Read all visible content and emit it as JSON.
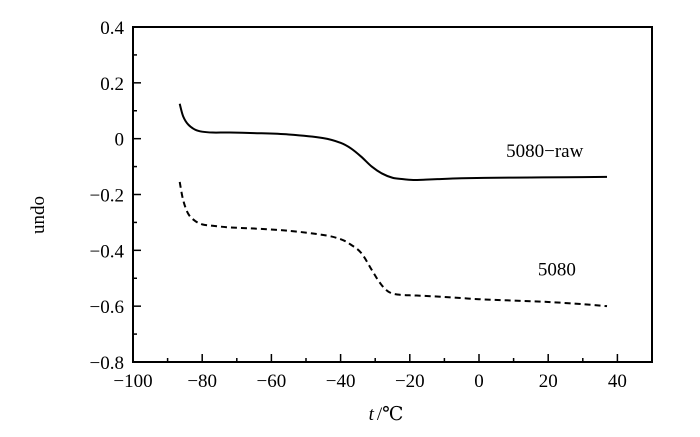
{
  "chart_data": {
    "type": "line",
    "title": "",
    "xlabel_var": "t",
    "xlabel_unit": "/℃",
    "ylabel": "undo",
    "xlim": [
      -100,
      50
    ],
    "ylim": [
      -0.8,
      0.4
    ],
    "x_ticks": [
      -100,
      -80,
      -60,
      -40,
      -20,
      0,
      20,
      40
    ],
    "x_tick_labels": [
      "−100",
      "−80",
      "−60",
      "−40",
      "−20",
      "0",
      "20",
      "40"
    ],
    "y_ticks": [
      0.4,
      0.2,
      0,
      -0.2,
      -0.4,
      -0.6,
      -0.8
    ],
    "y_tick_labels": [
      "0.4",
      "0.2",
      "0",
      "−0.2",
      "−0.4",
      "−0.6",
      "−0.8"
    ],
    "grid": false,
    "series": [
      {
        "name": "5080−raw",
        "style": "solid",
        "x": [
          -86.5,
          -85.5,
          -84,
          -82,
          -80,
          -77,
          -72,
          -65,
          -55,
          -45,
          -40,
          -37,
          -34,
          -31,
          -28,
          -25,
          -22,
          -19,
          -16,
          -12,
          -5,
          5,
          15,
          25,
          37
        ],
        "y": [
          0.125,
          0.08,
          0.05,
          0.032,
          0.025,
          0.022,
          0.022,
          0.02,
          0.015,
          0.002,
          -0.015,
          -0.035,
          -0.065,
          -0.1,
          -0.125,
          -0.14,
          -0.145,
          -0.148,
          -0.147,
          -0.145,
          -0.142,
          -0.14,
          -0.139,
          -0.138,
          -0.137
        ]
      },
      {
        "name": "5080",
        "style": "dashed",
        "x": [
          -86.5,
          -85.5,
          -84,
          -82,
          -80,
          -77,
          -72,
          -65,
          -55,
          -45,
          -40,
          -37,
          -34,
          -31,
          -29,
          -27,
          -25,
          -22,
          -18,
          -10,
          0,
          10,
          20,
          30,
          37
        ],
        "y": [
          -0.155,
          -0.22,
          -0.27,
          -0.295,
          -0.307,
          -0.312,
          -0.318,
          -0.322,
          -0.33,
          -0.345,
          -0.36,
          -0.38,
          -0.41,
          -0.47,
          -0.51,
          -0.54,
          -0.555,
          -0.56,
          -0.562,
          -0.567,
          -0.575,
          -0.58,
          -0.585,
          -0.593,
          -0.6
        ]
      }
    ],
    "annotations": [
      {
        "text": "5080−raw",
        "x": 19,
        "y": -0.065
      },
      {
        "text": "5080",
        "x": 22.5,
        "y": -0.49
      }
    ]
  }
}
